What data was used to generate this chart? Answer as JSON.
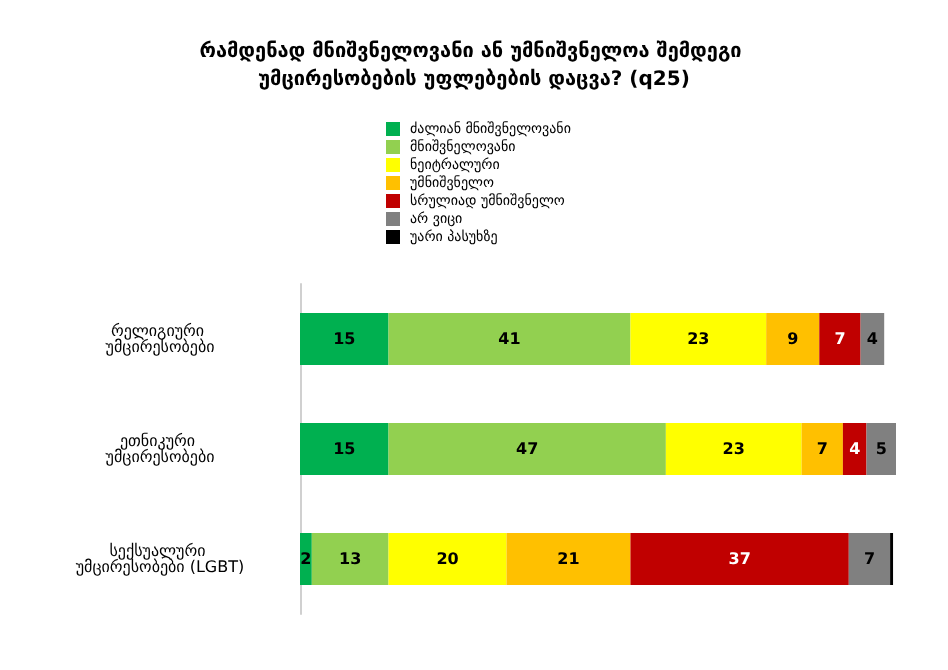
{
  "chart_data": {
    "type": "bar",
    "orientation": "horizontal",
    "stacked": true,
    "title": "რამდენად მნიშვნელოვანი ან უმნიშვნელოა შემდეგი უმცირესობების უფლებების დაცვა? (q25)",
    "categories": [
      "რელიგიური უმცირესობები",
      "ეთნიკური უმცირესობები",
      "სექსუალური უმცირესობები (LGBT)"
    ],
    "series": [
      {
        "name": "ძალიან მნიშვნელოვანი",
        "color": "#00b050",
        "values": [
          15,
          15,
          2
        ],
        "value_labels": [
          "15",
          "15",
          "2"
        ]
      },
      {
        "name": "მნიშვნელოვანი",
        "color": "#92d050",
        "values": [
          41,
          47,
          13
        ],
        "value_labels": [
          "41",
          "47",
          "13"
        ]
      },
      {
        "name": "ნეიტრალური",
        "color": "#ffff00",
        "values": [
          23,
          23,
          20
        ],
        "value_labels": [
          "23",
          "23",
          "20"
        ]
      },
      {
        "name": "უმნიშვნელო",
        "color": "#ffc000",
        "values": [
          9,
          7,
          21
        ],
        "value_labels": [
          "9",
          "7",
          "21"
        ]
      },
      {
        "name": "სრულიად უმნიშვნელო",
        "color": "#c00000",
        "values": [
          7,
          4,
          37
        ],
        "value_labels": [
          "7",
          "4",
          "37"
        ]
      },
      {
        "name": "არ ვიცი",
        "color": "#808080",
        "values": [
          4,
          5,
          7
        ],
        "value_labels": [
          "4",
          "5",
          "7"
        ]
      },
      {
        "name": "უარი პასუხზე",
        "color": "#000000",
        "values": [
          null,
          null,
          0.5
        ],
        "value_labels": [
          null,
          null,
          null
        ]
      }
    ],
    "legend": "top",
    "tick_labels": "y"
  }
}
